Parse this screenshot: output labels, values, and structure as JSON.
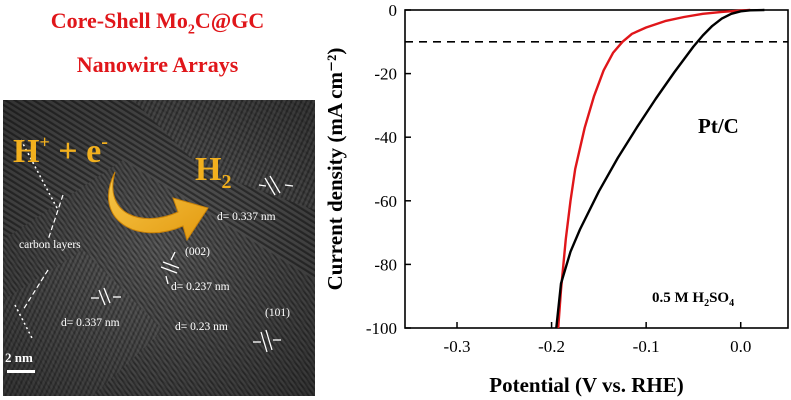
{
  "left_panel": {
    "title_line1_pre": "Core-Shell Mo",
    "title_line1_sub": "2",
    "title_line1_post": "C@GC",
    "title_line2": "Nanowire Arrays",
    "reaction": {
      "h": "H",
      "plus_sup": "+",
      "plus": " + e",
      "minus_sup": "-",
      "product": "H",
      "product_sub": "2"
    },
    "labels": {
      "carbon_layers": "carbon layers",
      "d_top": "d= 0.337 nm",
      "plane_002": "(002)",
      "d_mid": "d= 0.237 nm",
      "d_left": "d= 0.337 nm",
      "d_bottom": "d= 0.23 nm",
      "plane_101": "(101)",
      "scale": "2 nm"
    },
    "colors": {
      "title": "#e0161a",
      "arrow": "#f2b01e",
      "label": "#ffffff"
    }
  },
  "chart_data": {
    "type": "line",
    "xlabel": "Potential (V vs. RHE)",
    "ylabel": "Current density (mA cm⁻²)",
    "xlim": [
      -0.355,
      0.05
    ],
    "ylim": [
      -100,
      0
    ],
    "xticks": [
      -0.3,
      -0.2,
      -0.1,
      0.0
    ],
    "xtick_labels": [
      "-0.3",
      "-0.2",
      "-0.1",
      "0.0"
    ],
    "yticks": [
      0,
      -20,
      -40,
      -60,
      -80,
      -100
    ],
    "ytick_labels": [
      "0",
      "-20",
      "-40",
      "-60",
      "-80",
      "-100"
    ],
    "reference_line": {
      "y": -10,
      "style": "dashed"
    },
    "annotations": {
      "pt_c": "Pt/C",
      "electrolyte_pre": "0.5 M H",
      "electrolyte_sub1": "2",
      "electrolyte_mid": "SO",
      "electrolyte_sub2": "4"
    },
    "series": [
      {
        "name": "Mo2C@GC",
        "color": "#e0161a",
        "x": [
          0.01,
          0.0,
          -0.02,
          -0.04,
          -0.06,
          -0.08,
          -0.1,
          -0.115,
          -0.125,
          -0.135,
          -0.145,
          -0.155,
          -0.165,
          -0.175,
          -0.18,
          -0.185,
          -0.19,
          -0.193
        ],
        "y": [
          0,
          -0.2,
          -0.6,
          -1.2,
          -2.2,
          -3.5,
          -5.5,
          -7.5,
          -10,
          -13.5,
          -19,
          -27,
          -37,
          -50,
          -60,
          -72,
          -88,
          -100
        ]
      },
      {
        "name": "Pt/C",
        "color": "#000000",
        "x": [
          0.025,
          0.01,
          0.0,
          -0.01,
          -0.02,
          -0.03,
          -0.04,
          -0.05,
          -0.07,
          -0.09,
          -0.11,
          -0.13,
          -0.15,
          -0.17,
          -0.18,
          -0.19,
          -0.195
        ],
        "y": [
          0,
          -0.1,
          -0.4,
          -1.2,
          -2.7,
          -5,
          -8,
          -11.5,
          -19.5,
          -28,
          -37,
          -46.5,
          -57,
          -69,
          -76,
          -86,
          -100
        ]
      }
    ]
  }
}
